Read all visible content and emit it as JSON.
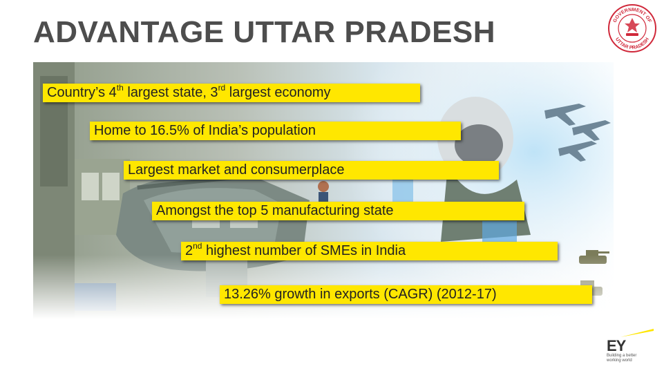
{
  "slide": {
    "title": "ADVANTAGE UTTAR PRADESH"
  },
  "callouts": [
    {
      "before": "Country’s 4",
      "sup1": "th",
      "middle": " largest state, 3",
      "sup2": "rd",
      "after": " largest economy"
    },
    {
      "text": "Home to 16.5% of India’s population"
    },
    {
      "text": "Largest market and consumerplace"
    },
    {
      "text": "Amongst the top 5 manufacturing state"
    },
    {
      "before": "2",
      "sup1": "nd",
      "after": " highest number of SMEs in India"
    },
    {
      "text": "13.26% growth in exports (CAGR) (2012-17)"
    }
  ],
  "seal": {
    "top_text": "GOVERNMENT OF",
    "bottom_text": "UTTAR PRADESH",
    "color": "#d0283a"
  },
  "brand": {
    "logo_letters": "EY",
    "tagline_line1": "Building a better",
    "tagline_line2": "working world",
    "accent_color": "#ffe600"
  },
  "colors": {
    "callout_bg": "#ffe700",
    "title": "#4d4d4d"
  }
}
